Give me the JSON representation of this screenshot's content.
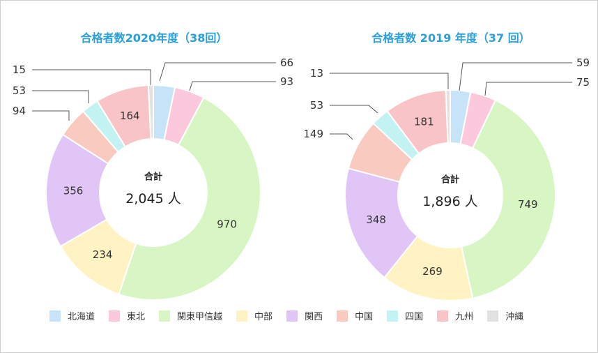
{
  "chart_data": [
    {
      "type": "donut",
      "title": "合格者数2020年度（38回）",
      "center_label": "合計",
      "center_total": "2,045 人",
      "categories": [
        "北海道",
        "東北",
        "関東甲信越",
        "中部",
        "関西",
        "中国",
        "四国",
        "九州",
        "沖縄"
      ],
      "values": [
        66,
        93,
        970,
        234,
        356,
        94,
        53,
        164,
        15
      ]
    },
    {
      "type": "donut",
      "title": "合格者数 2019 年度（37 回）",
      "center_label": "合計",
      "center_total": "1,896 人",
      "categories": [
        "北海道",
        "東北",
        "関東甲信越",
        "中部",
        "関西",
        "中国",
        "四国",
        "九州",
        "沖縄"
      ],
      "values": [
        59,
        75,
        749,
        269,
        348,
        149,
        53,
        181,
        13
      ]
    }
  ],
  "legend": [
    {
      "label": "北海道",
      "color": "#c6e3f7"
    },
    {
      "label": "東北",
      "color": "#fcc8dc"
    },
    {
      "label": "関東甲信越",
      "color": "#d8f5c4"
    },
    {
      "label": "中部",
      "color": "#fff3c4"
    },
    {
      "label": "関西",
      "color": "#e2c5f7"
    },
    {
      "label": "中国",
      "color": "#f9cbc0"
    },
    {
      "label": "四国",
      "color": "#c2f2f2"
    },
    {
      "label": "九州",
      "color": "#f8c4c7"
    },
    {
      "label": "沖縄",
      "color": "#e2e2e2"
    }
  ]
}
